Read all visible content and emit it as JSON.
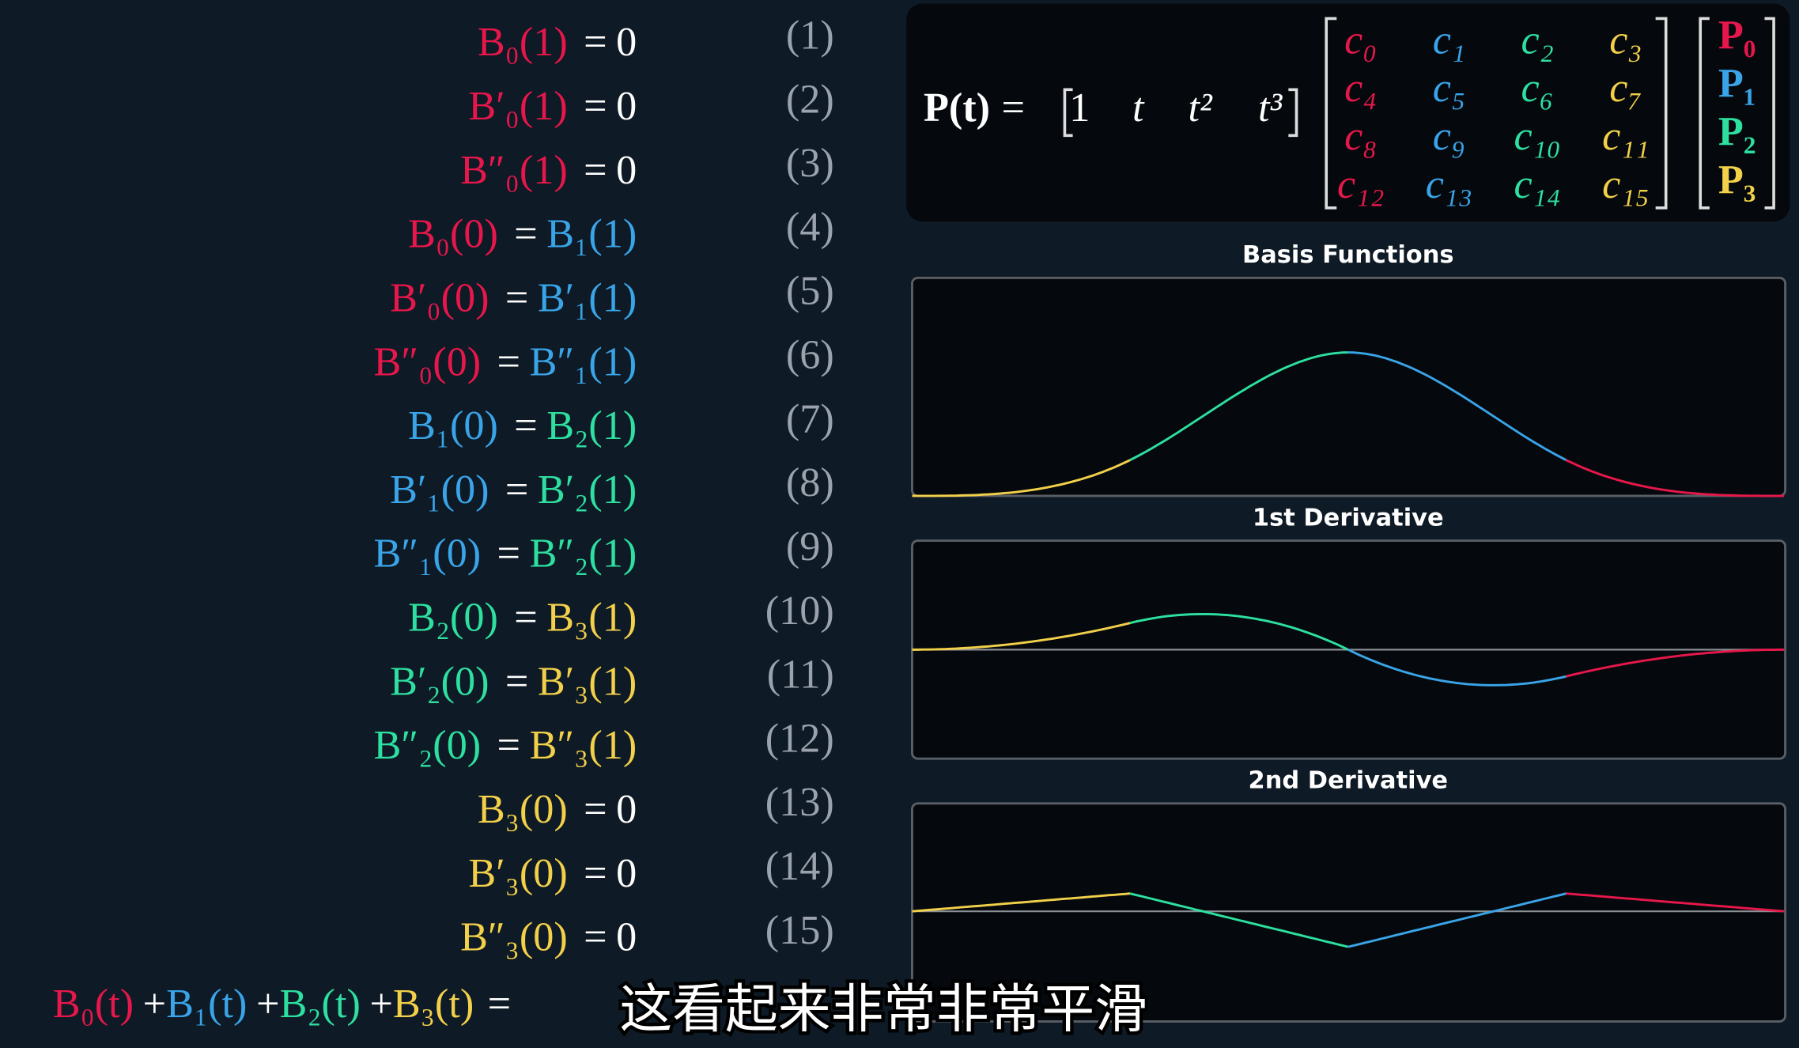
{
  "equals": "=",
  "equations": [
    {
      "lhs": "B₀(1)",
      "lhs_color": "#e8174b",
      "rhs": "0",
      "rhs_color": "#ffffff",
      "number": "(1)"
    },
    {
      "lhs": "B′₀(1)",
      "lhs_color": "#e8174b",
      "rhs": "0",
      "rhs_color": "#ffffff",
      "number": "(2)"
    },
    {
      "lhs": "B″₀(1)",
      "lhs_color": "#e8174b",
      "rhs": "0",
      "rhs_color": "#ffffff",
      "number": "(3)"
    },
    {
      "lhs": "B₀(0)",
      "lhs_color": "#e8174b",
      "rhs": "B₁(1)",
      "rhs_color": "#3aa4e8",
      "number": "(4)"
    },
    {
      "lhs": "B′₀(0)",
      "lhs_color": "#e8174b",
      "rhs": "B′₁(1)",
      "rhs_color": "#3aa4e8",
      "number": "(5)"
    },
    {
      "lhs": "B″₀(0)",
      "lhs_color": "#e8174b",
      "rhs": "B″₁(1)",
      "rhs_color": "#3aa4e8",
      "number": "(6)"
    },
    {
      "lhs": "B₁(0)",
      "lhs_color": "#3aa4e8",
      "rhs": "B₂(1)",
      "rhs_color": "#2ee0a0",
      "number": "(7)"
    },
    {
      "lhs": "B′₁(0)",
      "lhs_color": "#3aa4e8",
      "rhs": "B′₂(1)",
      "rhs_color": "#2ee0a0",
      "number": "(8)"
    },
    {
      "lhs": "B″₁(0)",
      "lhs_color": "#3aa4e8",
      "rhs": "B″₂(1)",
      "rhs_color": "#2ee0a0",
      "number": "(9)"
    },
    {
      "lhs": "B₂(0)",
      "lhs_color": "#2ee0a0",
      "rhs": "B₃(1)",
      "rhs_color": "#f2d04a",
      "number": "(10)"
    },
    {
      "lhs": "B′₂(0)",
      "lhs_color": "#2ee0a0",
      "rhs": "B′₃(1)",
      "rhs_color": "#f2d04a",
      "number": "(11)"
    },
    {
      "lhs": "B″₂(0)",
      "lhs_color": "#2ee0a0",
      "rhs": "B″₃(1)",
      "rhs_color": "#f2d04a",
      "number": "(12)"
    },
    {
      "lhs": "B₃(0)",
      "lhs_color": "#f2d04a",
      "rhs": "0",
      "rhs_color": "#ffffff",
      "number": "(13)"
    },
    {
      "lhs": "B′₃(0)",
      "lhs_color": "#f2d04a",
      "rhs": "0",
      "rhs_color": "#ffffff",
      "number": "(14)"
    },
    {
      "lhs": "B″₃(0)",
      "lhs_color": "#f2d04a",
      "rhs": "0",
      "rhs_color": "#ffffff",
      "number": "(15)"
    }
  ],
  "sum_line": {
    "terms": [
      "B₀(t)",
      "B₁(t)",
      "B₂(t)",
      "B₃(t)"
    ],
    "colors": [
      "#e8174b",
      "#3aa4e8",
      "#2ee0a0",
      "#f2d04a"
    ],
    "plus": "+"
  },
  "matrix": {
    "lhs": "P(t)",
    "row": [
      "1",
      "t",
      "t²",
      "t³"
    ],
    "coefficients": [
      [
        "c₀",
        "c₁",
        "c₂",
        "c₃"
      ],
      [
        "c₄",
        "c₅",
        "c₆",
        "c₇"
      ],
      [
        "c₈",
        "c₉",
        "c₁₀",
        "c₁₁"
      ],
      [
        "c₁₂",
        "c₁₃",
        "c₁₄",
        "c₁₅"
      ]
    ],
    "column_colors": [
      "#e8174b",
      "#3aa4e8",
      "#2ee0a0",
      "#f2d04a"
    ],
    "points": [
      "P₀",
      "P₁",
      "P₂",
      "P₃"
    ]
  },
  "plots": {
    "titles": [
      "Basis Functions",
      "1st Derivative",
      "2nd Derivative"
    ],
    "segment_colors": [
      "#f2d04a",
      "#2ee0a0",
      "#3aa4e8",
      "#e8174b"
    ]
  },
  "subtitle": "这看起来非常非常平滑"
}
